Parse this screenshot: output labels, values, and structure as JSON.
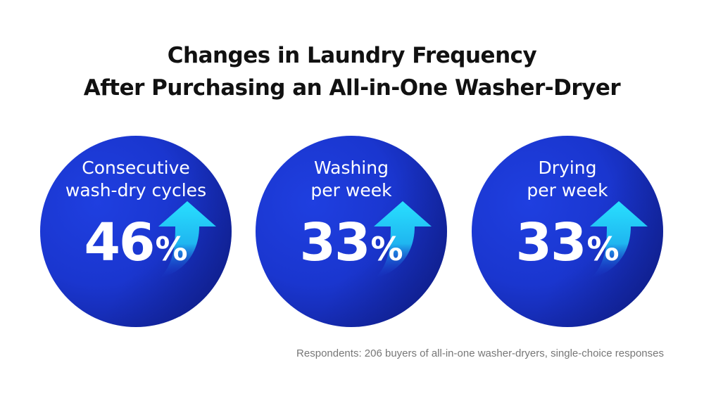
{
  "title": {
    "line1": "Changes in Laundry Frequency",
    "line2": "After Purchasing an All-in-One Washer-Dryer"
  },
  "stats": [
    {
      "label_line1": "Consecutive",
      "label_line2": "wash-dry cycles",
      "value": "46",
      "unit": "%",
      "icon": "up-arrow-icon"
    },
    {
      "label_line1": "Washing",
      "label_line2": "per week",
      "value": "33",
      "unit": "%",
      "icon": "up-arrow-icon"
    },
    {
      "label_line1": "Drying",
      "label_line2": "per week",
      "value": "33",
      "unit": "%",
      "icon": "up-arrow-icon"
    }
  ],
  "footnote": "Respondents: 206 buyers of all-in-one washer-dryers, single-choice responses",
  "colors": {
    "circle": "#1a36cf",
    "arrow": "#22d3f5",
    "title": "#111111",
    "footnote": "#777777"
  }
}
